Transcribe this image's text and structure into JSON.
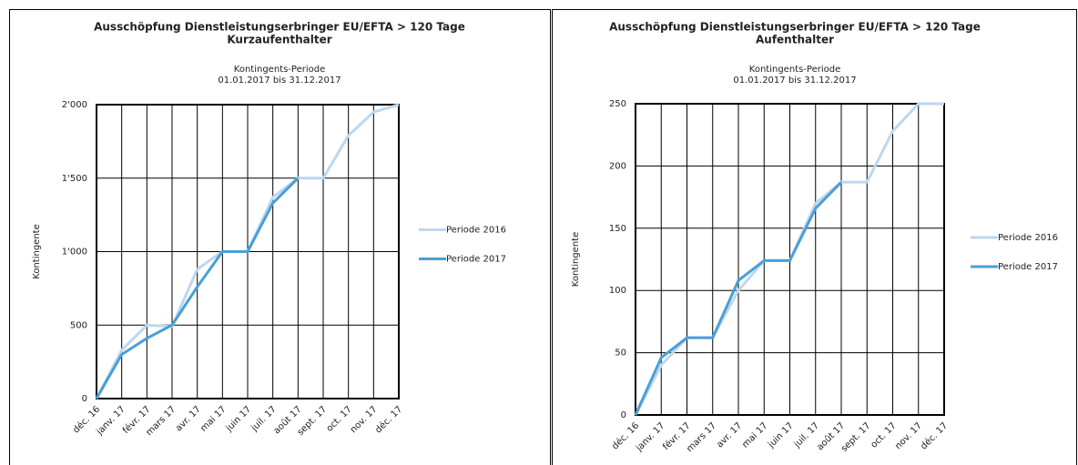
{
  "chart_data": [
    {
      "type": "line",
      "title": [
        "Ausschöpfung Dienstleistungserbringer EU/EFTA > 120 Tage",
        "Kurzaufenthalter"
      ],
      "subtitle": [
        "Kontingents-Periode",
        "01.01.2017 bis 31.12.2017"
      ],
      "y_label": "Kontingente",
      "categories": [
        "déc. 16",
        "janv. 17",
        "févr. 17",
        "mars 17",
        "avr. 17",
        "mai 17",
        "juin 17",
        "juil. 17",
        "août 17",
        "sept. 17",
        "oct. 17",
        "nov. 17",
        "déc. 17"
      ],
      "series": [
        {
          "name": "Periode 2016",
          "color": "#bdd7ee",
          "values": [
            0,
            330,
            500,
            490,
            880,
            1000,
            1000,
            1370,
            1500,
            1500,
            1790,
            1950,
            2000
          ]
        },
        {
          "name": "Periode 2017",
          "color": "#4a9fd8",
          "values": [
            0,
            300,
            410,
            500,
            760,
            1000,
            1000,
            1330,
            1500,
            null,
            null,
            null,
            null
          ]
        }
      ],
      "ylim": [
        0,
        2000
      ],
      "yticks": [
        0,
        500,
        {
          "value": 1000,
          "label": "1'000"
        },
        {
          "value": 1500,
          "label": "1'500"
        },
        {
          "value": 2000,
          "label": "2'000"
        }
      ],
      "grid": true,
      "legend": "right"
    },
    {
      "type": "line",
      "title": [
        "Ausschöpfung Dienstleistungserbringer EU/EFTA > 120 Tage",
        "Aufenthalter"
      ],
      "subtitle": [
        "Kontingents-Periode",
        "01.01.2017 bis 31.12.2017"
      ],
      "y_label": "Kontingente",
      "categories": [
        "déc. 16",
        "janv. 17",
        "févr. 17",
        "mars 17",
        "avr. 17",
        "mai 17",
        "juin 17",
        "juil. 17",
        "août 17",
        "sept. 17",
        "oct. 17",
        "nov. 17",
        "déc. 17"
      ],
      "series": [
        {
          "name": "Periode 2016",
          "color": "#bdd7ee",
          "values": [
            0,
            40,
            62,
            62,
            100,
            124,
            124,
            170,
            187,
            187,
            228,
            250,
            250
          ]
        },
        {
          "name": "Periode 2017",
          "color": "#4a9fd8",
          "values": [
            0,
            46,
            62,
            62,
            108,
            124,
            124,
            166,
            187,
            null,
            null,
            null,
            null
          ]
        }
      ],
      "ylim": [
        0,
        250
      ],
      "yticks": [
        0,
        50,
        100,
        150,
        200,
        250
      ],
      "grid": true,
      "legend": "right"
    }
  ]
}
